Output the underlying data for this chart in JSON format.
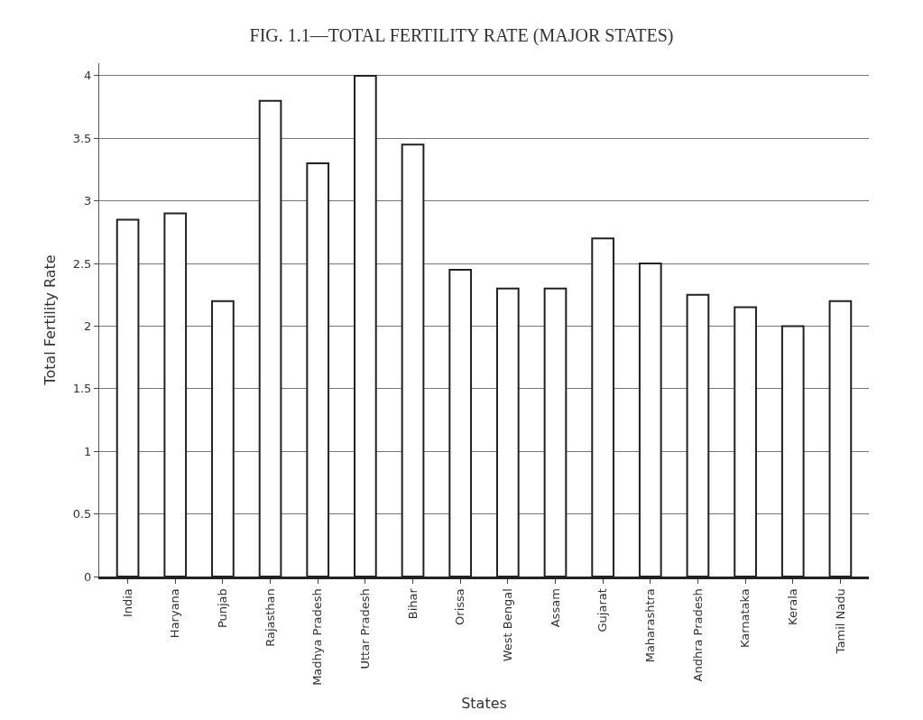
{
  "chart_data": {
    "type": "bar",
    "title": "FIG. 1.1—TOTAL FERTILITY RATE (MAJOR STATES)",
    "xlabel": "States",
    "ylabel": "Total Fertility Rate",
    "categories": [
      "India",
      "Haryana",
      "Punjab",
      "Rajasthan",
      "Madhya Pradesh",
      "Uttar Pradesh",
      "Bihar",
      "Orissa",
      "West Bengal",
      "Assam",
      "Gujarat",
      "Maharashtra",
      "Andhra Pradesh",
      "Karnataka",
      "Kerala",
      "Tamil Nadu"
    ],
    "values": [
      2.85,
      2.9,
      2.2,
      3.8,
      3.3,
      4.0,
      3.45,
      2.45,
      2.3,
      2.3,
      2.7,
      2.5,
      2.25,
      2.15,
      2.0,
      2.2
    ],
    "color": "#ffffff",
    "ylim": [
      0,
      4.1
    ],
    "yticks": [
      0,
      0.5,
      1,
      1.5,
      2,
      2.5,
      3,
      3.5,
      4
    ],
    "grid": "y",
    "legend": false
  }
}
